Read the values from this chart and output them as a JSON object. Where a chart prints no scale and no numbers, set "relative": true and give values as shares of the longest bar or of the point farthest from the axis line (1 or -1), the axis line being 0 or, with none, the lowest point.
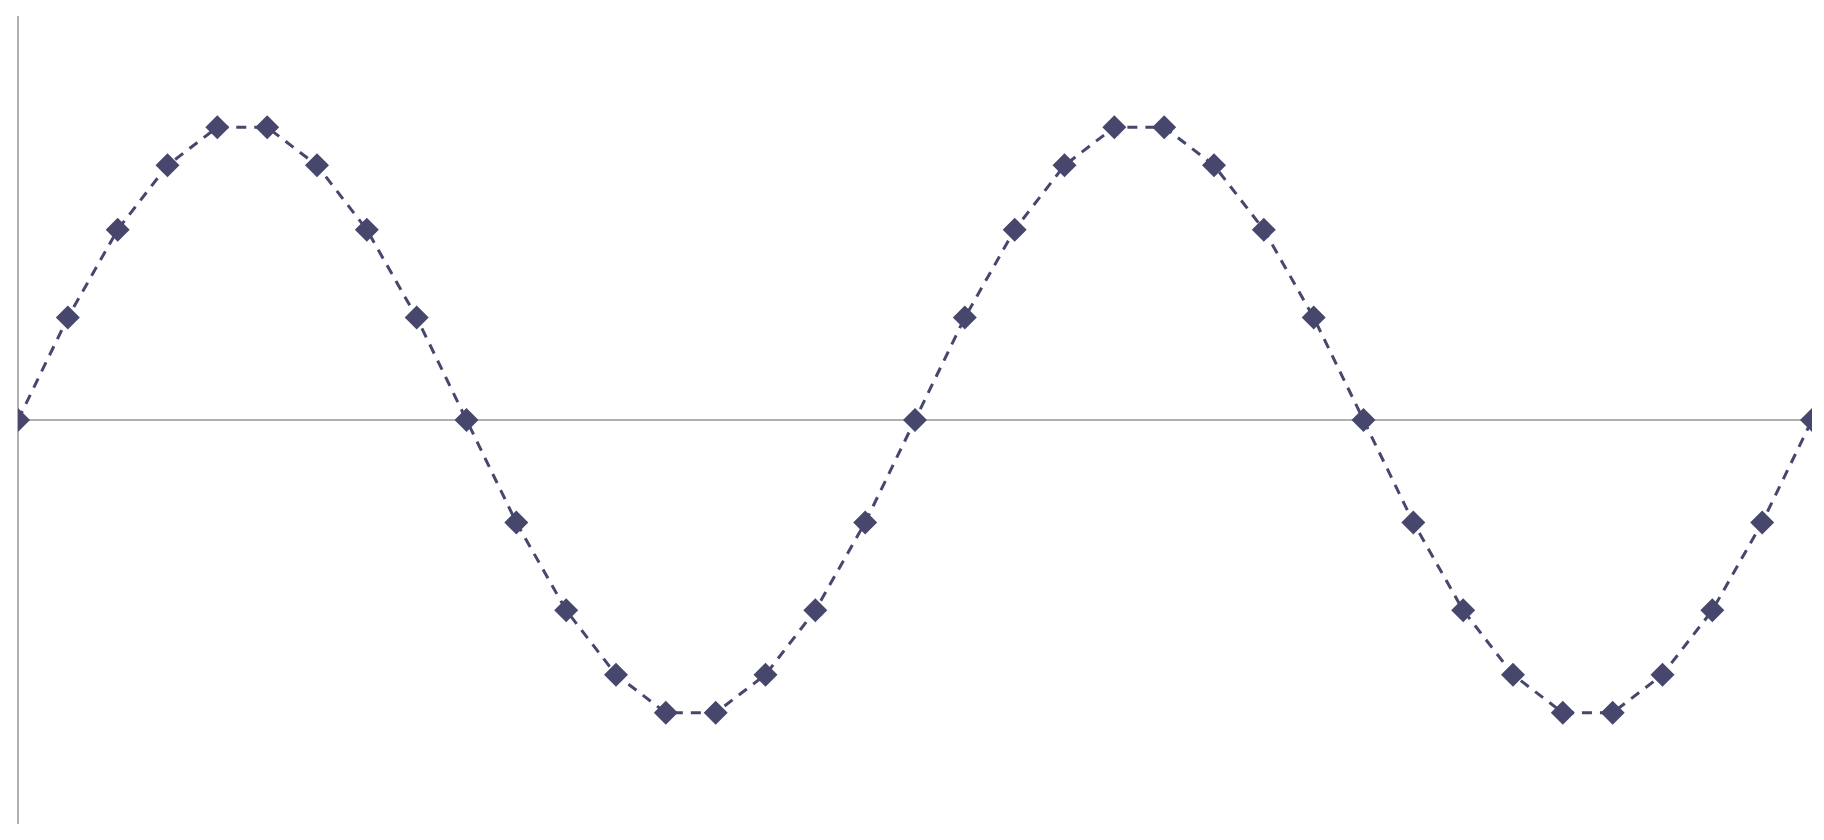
{
  "chart_data": {
    "type": "line",
    "relative": true,
    "categories": [
      null,
      null,
      null,
      null,
      null,
      null,
      null,
      null,
      null,
      null,
      null,
      null,
      null,
      null,
      null,
      null,
      null,
      null,
      null,
      null,
      null,
      null,
      null,
      null,
      null,
      null,
      null,
      null,
      null,
      null,
      null,
      null,
      null,
      null,
      null,
      null,
      null
    ],
    "series": [
      {
        "color": "#47476e",
        "values": [
          0,
          0.35,
          0.65,
          0.87,
          1,
          1,
          0.87,
          0.65,
          0.35,
          0,
          -0.35,
          -0.65,
          -0.87,
          -1,
          -1,
          -0.87,
          -0.65,
          -0.35,
          0,
          0.35,
          0.65,
          0.87,
          1,
          1,
          0.87,
          0.65,
          0.35,
          0,
          -0.35,
          -0.65,
          -0.87,
          -1,
          -1,
          -0.87,
          -0.65,
          -0.35,
          0
        ]
      }
    ],
    "marker": "diamond",
    "line_style": "dashed",
    "grid": false,
    "legend": false
  }
}
